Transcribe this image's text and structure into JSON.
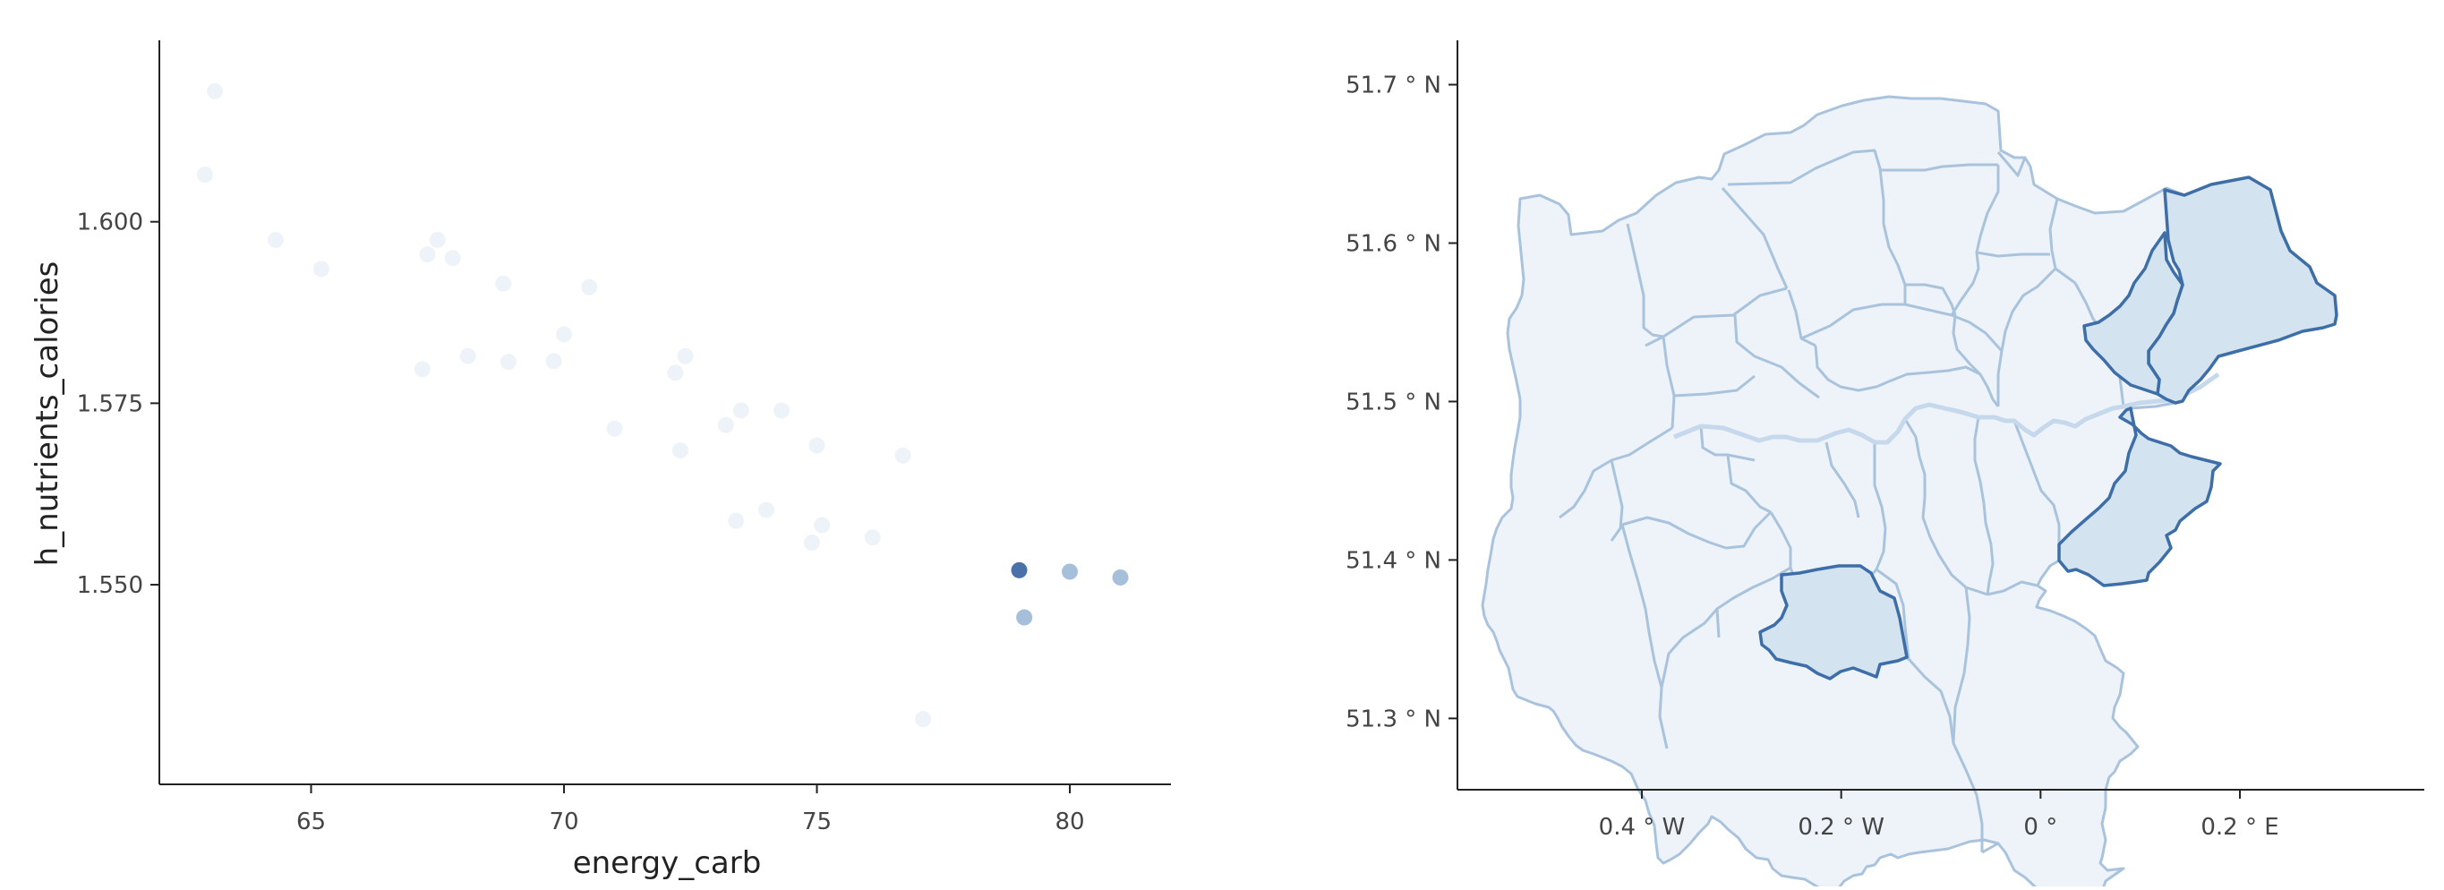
{
  "chart_data": [
    {
      "type": "scatter",
      "xlabel": "energy_carb",
      "ylabel": "h_nutrients_calories",
      "xlim": [
        62,
        82
      ],
      "ylim": [
        1.5225,
        1.625
      ],
      "xticks": [
        65,
        70,
        75,
        80
      ],
      "xtick_labels": [
        "65",
        "70",
        "75",
        "80"
      ],
      "yticks": [
        1.55,
        1.575,
        1.6
      ],
      "ytick_labels": [
        "1.550",
        "1.575",
        "1.600"
      ],
      "grid": false,
      "legend": "none",
      "points": [
        {
          "x": 63.1,
          "y": 1.618,
          "selected": false
        },
        {
          "x": 62.9,
          "y": 1.6065,
          "selected": false
        },
        {
          "x": 64.3,
          "y": 1.5975,
          "selected": false
        },
        {
          "x": 65.2,
          "y": 1.5935,
          "selected": false
        },
        {
          "x": 67.3,
          "y": 1.5955,
          "selected": false
        },
        {
          "x": 67.5,
          "y": 1.5975,
          "selected": false
        },
        {
          "x": 67.8,
          "y": 1.595,
          "selected": false
        },
        {
          "x": 68.8,
          "y": 1.5915,
          "selected": false
        },
        {
          "x": 70.5,
          "y": 1.591,
          "selected": false
        },
        {
          "x": 70.0,
          "y": 1.5845,
          "selected": false
        },
        {
          "x": 67.2,
          "y": 1.5797,
          "selected": false
        },
        {
          "x": 68.1,
          "y": 1.5815,
          "selected": false
        },
        {
          "x": 68.9,
          "y": 1.5807,
          "selected": false
        },
        {
          "x": 69.8,
          "y": 1.5808,
          "selected": false
        },
        {
          "x": 72.4,
          "y": 1.5815,
          "selected": false
        },
        {
          "x": 72.2,
          "y": 1.5792,
          "selected": false
        },
        {
          "x": 71.0,
          "y": 1.5715,
          "selected": false
        },
        {
          "x": 72.3,
          "y": 1.5685,
          "selected": false
        },
        {
          "x": 73.2,
          "y": 1.572,
          "selected": false
        },
        {
          "x": 73.5,
          "y": 1.574,
          "selected": false
        },
        {
          "x": 74.3,
          "y": 1.574,
          "selected": false
        },
        {
          "x": 75.0,
          "y": 1.5692,
          "selected": false
        },
        {
          "x": 76.7,
          "y": 1.5678,
          "selected": false
        },
        {
          "x": 74.0,
          "y": 1.5603,
          "selected": false
        },
        {
          "x": 73.4,
          "y": 1.5588,
          "selected": false
        },
        {
          "x": 75.1,
          "y": 1.5582,
          "selected": false
        },
        {
          "x": 74.9,
          "y": 1.5558,
          "selected": false
        },
        {
          "x": 76.1,
          "y": 1.5565,
          "selected": false
        },
        {
          "x": 77.1,
          "y": 1.5315,
          "selected": false
        },
        {
          "x": 79.0,
          "y": 1.552,
          "selected": true,
          "highlight": "dark"
        },
        {
          "x": 80.0,
          "y": 1.5518,
          "selected": true,
          "highlight": "light"
        },
        {
          "x": 81.0,
          "y": 1.551,
          "selected": true,
          "highlight": "light"
        },
        {
          "x": 79.1,
          "y": 1.5455,
          "selected": true,
          "highlight": "light"
        }
      ],
      "colors": {
        "unselected": "#eef3f9",
        "selected_dark": "#4a72a8",
        "selected_light": "#a6bfdb"
      }
    },
    {
      "type": "map",
      "region": "Greater London boroughs",
      "lon_range": [
        -0.585,
        0.385
      ],
      "lat_range": [
        51.255,
        51.728
      ],
      "xticks": [
        -0.4,
        -0.2,
        0,
        0.2
      ],
      "xtick_labels": [
        "0.4 ° W",
        "0.2 ° W",
        "0 °",
        "0.2 ° E"
      ],
      "yticks": [
        51.3,
        51.4,
        51.5,
        51.6,
        51.7
      ],
      "ytick_labels": [
        "51.3 ° N",
        "51.4 ° N",
        "51.5 ° N",
        "51.6 ° N",
        "51.7 ° N"
      ],
      "highlighted_areas": 4,
      "colors": {
        "fill": "#edf3f9",
        "border": "#a9c3dd",
        "highlight_fill": "#d3e3ef",
        "highlight_border": "#3d6ea8",
        "river": "#c6d8eb"
      }
    }
  ]
}
